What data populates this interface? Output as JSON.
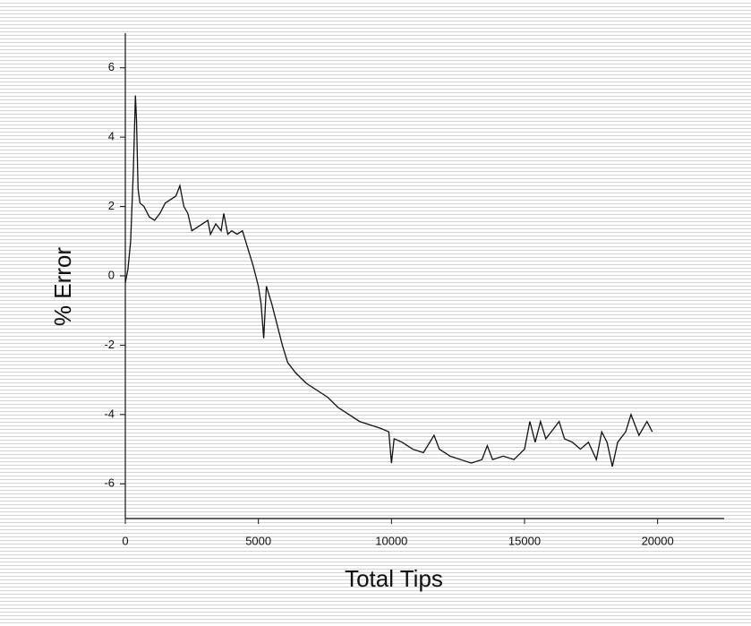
{
  "chart_data": {
    "type": "line",
    "x_label": "Total Tips",
    "y_label": "% Error",
    "x": [
      0,
      100,
      200,
      300,
      380,
      420,
      480,
      550,
      700,
      900,
      1100,
      1300,
      1500,
      1700,
      1900,
      2050,
      2200,
      2350,
      2500,
      2700,
      2900,
      3100,
      3200,
      3400,
      3600,
      3700,
      3850,
      4000,
      4200,
      4400,
      4600,
      4800,
      5000,
      5100,
      5200,
      5300,
      5500,
      5700,
      5900,
      6100,
      6400,
      6800,
      7200,
      7600,
      8000,
      8400,
      8800,
      9200,
      9600,
      9900,
      10000,
      10100,
      10400,
      10800,
      11200,
      11600,
      11800,
      12200,
      12600,
      13000,
      13400,
      13600,
      13800,
      14200,
      14600,
      15000,
      15200,
      15400,
      15600,
      15800,
      16000,
      16300,
      16500,
      16800,
      17100,
      17400,
      17700,
      17900,
      18100,
      18300,
      18500,
      18800,
      19000,
      19300,
      19600,
      19800
    ],
    "series": [
      {
        "color": "#111111",
        "values": [
          -0.2,
          0.2,
          1,
          3,
          5.2,
          4.5,
          2.5,
          2.1,
          2.0,
          1.7,
          1.6,
          1.8,
          2.1,
          2.2,
          2.3,
          2.6,
          2.0,
          1.8,
          1.3,
          1.4,
          1.5,
          1.6,
          1.2,
          1.5,
          1.3,
          1.8,
          1.2,
          1.3,
          1.2,
          1.3,
          0.8,
          0.3,
          -0.3,
          -0.8,
          -1.8,
          -0.3,
          -0.8,
          -1.4,
          -2.0,
          -2.5,
          -2.8,
          -3.1,
          -3.3,
          -3.5,
          -3.8,
          -4.0,
          -4.2,
          -4.3,
          -4.4,
          -4.5,
          -5.4,
          -4.7,
          -4.8,
          -5.0,
          -5.1,
          -4.6,
          -5.0,
          -5.2,
          -5.3,
          -5.4,
          -5.3,
          -4.9,
          -5.3,
          -5.2,
          -5.3,
          -5.0,
          -4.2,
          -4.8,
          -4.2,
          -4.7,
          -4.5,
          -4.2,
          -4.7,
          -4.8,
          -5.0,
          -4.8,
          -5.3,
          -4.5,
          -4.8,
          -5.5,
          -4.8,
          -4.5,
          -4.0,
          -4.6,
          -4.2,
          -4.5
        ]
      }
    ],
    "xlim": [
      0,
      22500
    ],
    "xticks": [
      0,
      5000,
      10000,
      15000,
      20000
    ],
    "ylim": [
      -7,
      7
    ],
    "yticks": [
      -6,
      -4,
      -2,
      0,
      2,
      4,
      6
    ]
  }
}
